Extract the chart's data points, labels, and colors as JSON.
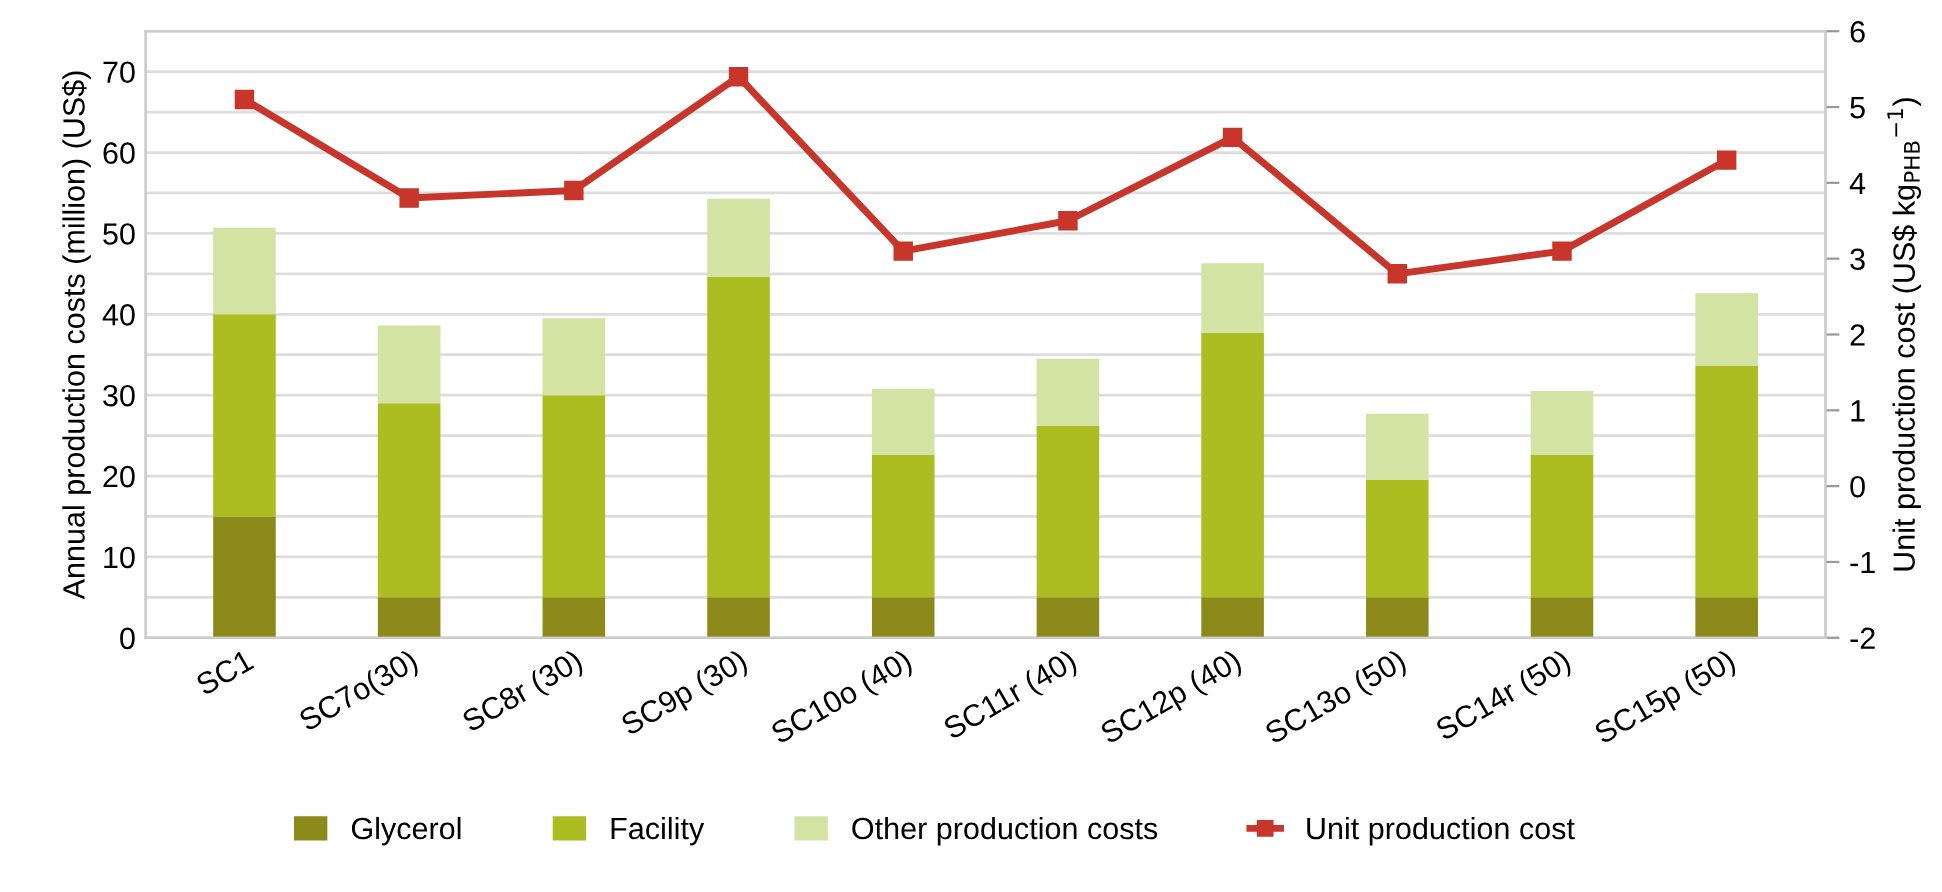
{
  "chart_data": {
    "type": "bar",
    "stacked": true,
    "categories": [
      "SC1",
      "SC7o(30)",
      "SC8r (30)",
      "SC9p (30)",
      "SC10o (40)",
      "SC11r (40)",
      "SC12p (40)",
      "SC13o (50)",
      "SC14r (50)",
      "SC15p (50)"
    ],
    "series": [
      {
        "name": "Glycerol",
        "color": "#8b8a1a",
        "values": [
          15,
          5,
          5,
          5,
          5,
          5,
          5,
          5,
          5,
          5
        ]
      },
      {
        "name": "Facility",
        "color": "#abbd20",
        "values": [
          25,
          24,
          25,
          39.6,
          17.6,
          21.2,
          32.7,
          14.5,
          17.6,
          28.6
        ]
      },
      {
        "name": "Other production costs",
        "color": "#d3e3a3",
        "values": [
          10.7,
          9.6,
          9.5,
          9.7,
          8.2,
          8.3,
          8.6,
          8.2,
          7.9,
          9
        ]
      },
      {
        "name": "Unit production cost",
        "type": "line",
        "axis": "y2",
        "color": "#c8352a",
        "marker": "square",
        "line_style": "solid",
        "values": [
          5.1,
          3.8,
          3.9,
          5.4,
          3.1,
          3.5,
          4.6,
          2.8,
          3.1,
          4.3
        ]
      }
    ],
    "ylabel": "Annual production costs (million) (US$)",
    "y2label": "Unit production cost (US$ kg$_{PHB}$$^{−1}$)",
    "ylim": [
      0,
      75
    ],
    "yticks": [
      0,
      {
        "value": 5,
        "label": null
      },
      10,
      {
        "value": 15,
        "label": null
      },
      20,
      {
        "value": 25,
        "label": null
      },
      30,
      {
        "value": 35,
        "label": null
      },
      40,
      {
        "value": 45,
        "label": null
      },
      50,
      {
        "value": 55,
        "label": null
      },
      60,
      {
        "value": 65,
        "label": null
      },
      70,
      {
        "value": 75,
        "label": null
      }
    ],
    "y2lim": [
      -2,
      6
    ],
    "y2ticks": [
      -2,
      -1,
      0,
      1,
      2,
      3,
      4,
      5,
      6
    ],
    "grid": "y",
    "legend": "bottom"
  }
}
